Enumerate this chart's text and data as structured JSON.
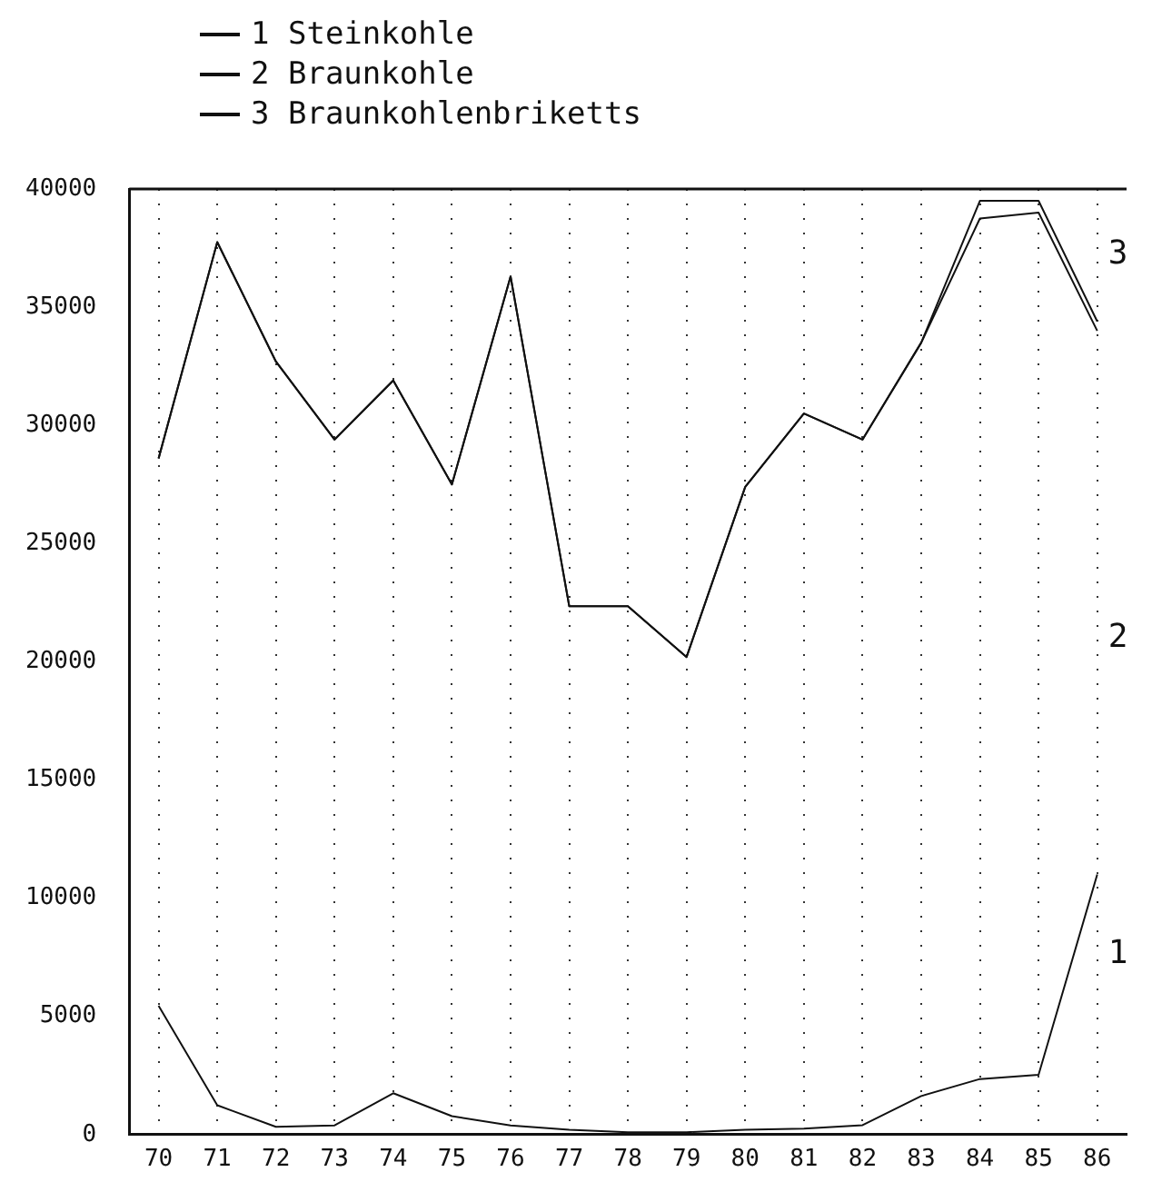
{
  "chart_data": {
    "type": "line",
    "categories": [
      "70",
      "71",
      "72",
      "73",
      "74",
      "75",
      "76",
      "77",
      "78",
      "79",
      "80",
      "81",
      "82",
      "83",
      "84",
      "85",
      "86"
    ],
    "series": [
      {
        "name": "1 Steinkohle",
        "color": "#111111",
        "values": [
          5450,
          1240,
          330,
          390,
          1750,
          780,
          390,
          200,
          100,
          100,
          200,
          250,
          400,
          1630,
          2350,
          2530,
          11000
        ]
      },
      {
        "name": "2 Braunkohle",
        "color": "#111111",
        "values": [
          28600,
          37750,
          32700,
          29400,
          31900,
          27500,
          36300,
          22350,
          22350,
          20200,
          27400,
          30500,
          29400,
          33500,
          38750,
          39000,
          34000
        ]
      },
      {
        "name": "3 Braunkohlenbriketts",
        "color": "#111111",
        "values": [
          28600,
          37750,
          32700,
          29400,
          31900,
          27500,
          36300,
          22350,
          22350,
          20200,
          27400,
          30500,
          29400,
          33500,
          39500,
          39500,
          34400
        ]
      }
    ],
    "ylim": [
      0,
      40000
    ],
    "yticks": [
      0,
      5000,
      10000,
      15000,
      20000,
      25000,
      30000,
      35000,
      40000
    ],
    "grid": "x",
    "legend": "top left",
    "marker": "none",
    "line_style": "solid",
    "annotations": [
      "1",
      "2",
      "3"
    ]
  }
}
